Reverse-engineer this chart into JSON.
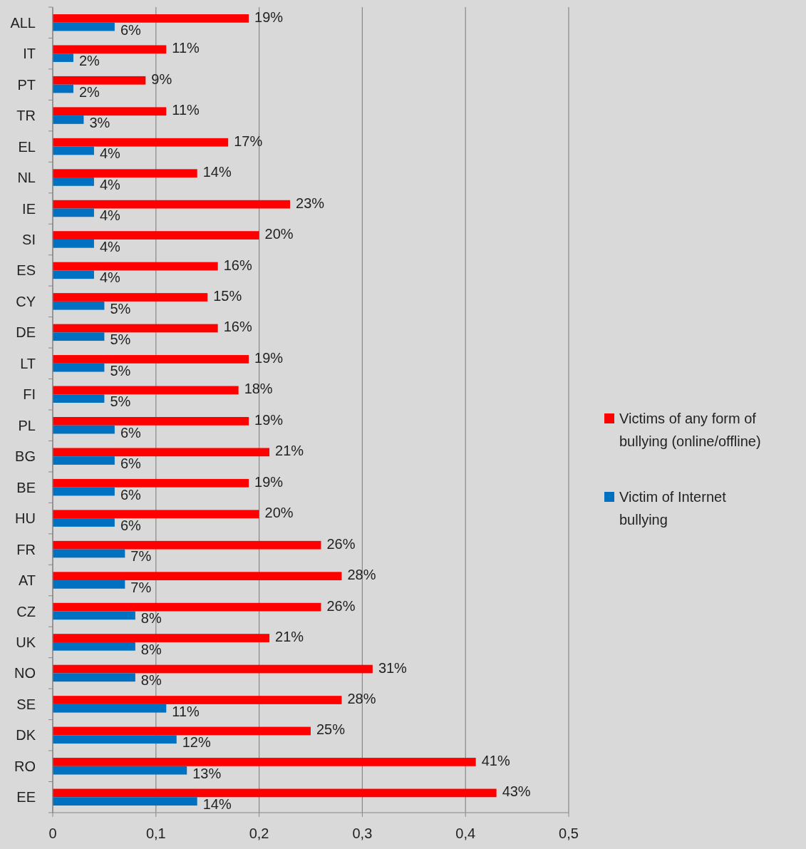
{
  "chart_data": {
    "type": "bar",
    "orientation": "horizontal",
    "categories": [
      "ALL",
      "IT",
      "PT",
      "TR",
      "EL",
      "NL",
      "IE",
      "SI",
      "ES",
      "CY",
      "DE",
      "LT",
      "FI",
      "PL",
      "BG",
      "BE",
      "HU",
      "FR",
      "AT",
      "CZ",
      "UK",
      "NO",
      "SE",
      "DK",
      "RO",
      "EE"
    ],
    "series": [
      {
        "name": "Victims of any form of bullying (online/offline)",
        "color": "#ff0000",
        "values": [
          0.19,
          0.11,
          0.09,
          0.11,
          0.17,
          0.14,
          0.23,
          0.2,
          0.16,
          0.15,
          0.16,
          0.19,
          0.18,
          0.19,
          0.21,
          0.19,
          0.2,
          0.26,
          0.28,
          0.26,
          0.21,
          0.31,
          0.28,
          0.25,
          0.41,
          0.43
        ],
        "value_labels": [
          "19%",
          "11%",
          "9%",
          "11%",
          "17%",
          "14%",
          "23%",
          "20%",
          "16%",
          "15%",
          "16%",
          "19%",
          "18%",
          "19%",
          "21%",
          "19%",
          "20%",
          "26%",
          "28%",
          "26%",
          "21%",
          "31%",
          "28%",
          "25%",
          "41%",
          "43%"
        ]
      },
      {
        "name": "Victim of Internet bullying",
        "color": "#0070c0",
        "values": [
          0.06,
          0.02,
          0.02,
          0.03,
          0.04,
          0.04,
          0.04,
          0.04,
          0.04,
          0.05,
          0.05,
          0.05,
          0.05,
          0.06,
          0.06,
          0.06,
          0.06,
          0.07,
          0.07,
          0.08,
          0.08,
          0.08,
          0.11,
          0.12,
          0.13,
          0.14
        ],
        "value_labels": [
          "6%",
          "2%",
          "2%",
          "3%",
          "4%",
          "4%",
          "4%",
          "4%",
          "4%",
          "5%",
          "5%",
          "5%",
          "5%",
          "6%",
          "6%",
          "6%",
          "6%",
          "7%",
          "7%",
          "8%",
          "8%",
          "8%",
          "11%",
          "12%",
          "13%",
          "14%"
        ]
      }
    ],
    "xlim": [
      0,
      0.5
    ],
    "xticks": [
      0,
      {
        "value": 0.1,
        "label": "0,1"
      },
      {
        "value": 0.2,
        "label": "0,2"
      },
      {
        "value": 0.3,
        "label": "0,3"
      },
      {
        "value": 0.4,
        "label": "0,4"
      },
      {
        "value": 0.5,
        "label": "0,5"
      }
    ],
    "grid": "x",
    "legend": "right"
  }
}
